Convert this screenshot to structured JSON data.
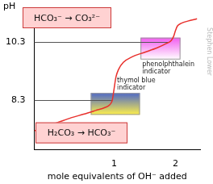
{
  "chart_data": {
    "type": "line",
    "y_label": "pH",
    "x_label": "mole equivalents of OH⁻ added",
    "x": [
      -0.3,
      -0.1,
      0.1,
      0.3,
      0.5,
      0.7,
      0.85,
      0.93,
      0.97,
      1.0,
      1.03,
      1.07,
      1.15,
      1.3,
      1.5,
      1.7,
      1.85,
      1.93,
      1.97,
      2.0,
      2.03,
      2.1,
      2.2,
      2.35
    ],
    "values": [
      7.25,
      7.4,
      7.55,
      7.7,
      7.82,
      7.95,
      8.05,
      8.15,
      8.3,
      8.7,
      9.1,
      9.35,
      9.6,
      9.8,
      9.95,
      10.1,
      10.25,
      10.35,
      10.5,
      10.7,
      10.85,
      10.95,
      11.02,
      11.1
    ],
    "color": "#e8302c",
    "xlim": [
      -0.3,
      2.4
    ],
    "ylim": [
      6.6,
      11.3
    ],
    "xticks": [
      1,
      2
    ],
    "yticks": [
      8.3,
      10.3
    ],
    "grid": false,
    "annotations": [
      {
        "text": "HCO₃⁻ → CO₃²⁻"
      },
      {
        "text": "H₂CO₃ → HCO₃⁻"
      }
    ],
    "indicators": [
      {
        "label": "phenolphthalein indicator",
        "range": [
          9.7,
          10.45
        ],
        "colors": [
          "#f25cf0",
          "#ffffff"
        ]
      },
      {
        "label": "thymol blue indicator",
        "range": [
          7.8,
          8.55
        ],
        "colors": [
          "#4d68c8",
          "#fff04a"
        ]
      }
    ],
    "credit": "Stephen Lower"
  }
}
